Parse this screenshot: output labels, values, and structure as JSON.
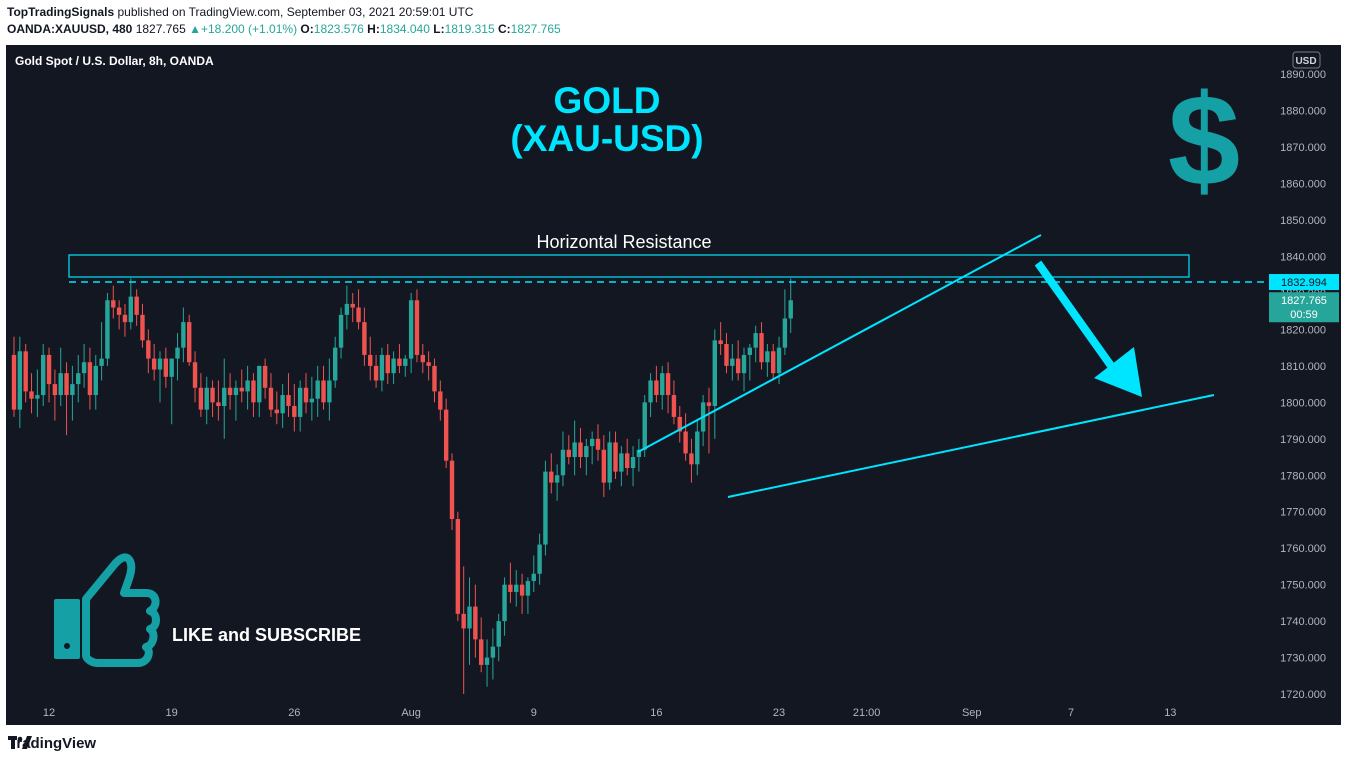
{
  "header": {
    "author": "TopTradingSignals",
    "published": "published on TradingView.com, September 03, 2021 20:59:01 UTC",
    "symbol": "OANDA:XAUUSD, 480",
    "last": "1827.765",
    "change": "+18.200 (+1.01%)",
    "open_label": "O:",
    "open": "1823.576",
    "high_label": "H:",
    "high": "1834.040",
    "low_label": "L:",
    "low": "1819.315",
    "close_label": "C:",
    "close": "1827.765"
  },
  "chart_title": "Gold Spot / U.S. Dollar, 8h, OANDA",
  "currency_badge": "USD",
  "annotations": {
    "title_line1": "GOLD",
    "title_line2": "(XAU-USD)",
    "dollar_sign": "$",
    "resistance_label": "Horizontal Resistance",
    "like_text": "LIKE and SUBSCRIBE"
  },
  "price_tags": {
    "resistance": "1832.994",
    "last_price": "1827.765",
    "countdown": "00:59"
  },
  "footer": {
    "brand": "TradingView"
  },
  "colors": {
    "background": "#131722",
    "up": "#26a69a",
    "down": "#ef5350",
    "annotation": "#00e5ff",
    "icon_teal": "#14a0a5"
  },
  "chart_data": {
    "type": "candlestick",
    "title": "Gold Spot / U.S. Dollar, 8h, OANDA",
    "ylim": [
      1717,
      1898
    ],
    "y_ticks": [
      "1720.000",
      "1730.000",
      "1740.000",
      "1750.000",
      "1760.000",
      "1770.000",
      "1780.000",
      "1790.000",
      "1800.000",
      "1810.000",
      "1820.000",
      "1830.000",
      "1840.000",
      "1850.000",
      "1860.000",
      "1870.000",
      "1880.000",
      "1890.000"
    ],
    "x_ticks": [
      {
        "label": "12",
        "i": 6
      },
      {
        "label": "19",
        "i": 27
      },
      {
        "label": "26",
        "i": 48
      },
      {
        "label": "Aug",
        "i": 68
      },
      {
        "label": "9",
        "i": 89
      },
      {
        "label": "16",
        "i": 110
      },
      {
        "label": "23",
        "i": 131
      },
      {
        "label": "21:00",
        "i": 146
      },
      {
        "label": "Sep",
        "i": 164
      },
      {
        "label": "7",
        "i": 181
      },
      {
        "label": "13",
        "i": 198
      }
    ],
    "resistance_level": 1832.994,
    "candles": [
      [
        1813,
        1818,
        1796,
        1798
      ],
      [
        1798,
        1818,
        1793,
        1814
      ],
      [
        1814,
        1816,
        1800,
        1803
      ],
      [
        1803,
        1808,
        1797,
        1801
      ],
      [
        1801,
        1809,
        1796,
        1802
      ],
      [
        1802,
        1816,
        1799,
        1813
      ],
      [
        1813,
        1815,
        1800,
        1805
      ],
      [
        1805,
        1809,
        1795,
        1802
      ],
      [
        1802,
        1815,
        1799,
        1808
      ],
      [
        1808,
        1811,
        1791,
        1802
      ],
      [
        1802,
        1810,
        1795,
        1805
      ],
      [
        1805,
        1813,
        1800,
        1808
      ],
      [
        1808,
        1816,
        1804,
        1811
      ],
      [
        1811,
        1815,
        1798,
        1802
      ],
      [
        1802,
        1813,
        1798,
        1810
      ],
      [
        1810,
        1822,
        1806,
        1812
      ],
      [
        1812,
        1830,
        1810,
        1828
      ],
      [
        1828,
        1832,
        1823,
        1826
      ],
      [
        1826,
        1828,
        1820,
        1824
      ],
      [
        1824,
        1827,
        1818,
        1822
      ],
      [
        1822,
        1834,
        1820,
        1829
      ],
      [
        1829,
        1831,
        1821,
        1824
      ],
      [
        1824,
        1827,
        1815,
        1817
      ],
      [
        1817,
        1820,
        1808,
        1812
      ],
      [
        1812,
        1816,
        1806,
        1809
      ],
      [
        1809,
        1814,
        1800,
        1812
      ],
      [
        1812,
        1815,
        1804,
        1807
      ],
      [
        1807,
        1812,
        1794,
        1812
      ],
      [
        1812,
        1819,
        1806,
        1815
      ],
      [
        1815,
        1826,
        1811,
        1822
      ],
      [
        1822,
        1824,
        1810,
        1811
      ],
      [
        1811,
        1814,
        1800,
        1804
      ],
      [
        1804,
        1808,
        1796,
        1798
      ],
      [
        1798,
        1807,
        1794,
        1804
      ],
      [
        1804,
        1806,
        1796,
        1800
      ],
      [
        1800,
        1806,
        1795,
        1799
      ],
      [
        1799,
        1812,
        1790,
        1804
      ],
      [
        1804,
        1808,
        1798,
        1802
      ],
      [
        1802,
        1806,
        1795,
        1804
      ],
      [
        1804,
        1809,
        1800,
        1803
      ],
      [
        1803,
        1810,
        1798,
        1806
      ],
      [
        1806,
        1808,
        1796,
        1800
      ],
      [
        1800,
        1810,
        1796,
        1810
      ],
      [
        1810,
        1812,
        1801,
        1804
      ],
      [
        1804,
        1808,
        1796,
        1798
      ],
      [
        1798,
        1803,
        1794,
        1797
      ],
      [
        1797,
        1805,
        1793,
        1802
      ],
      [
        1802,
        1808,
        1796,
        1799
      ],
      [
        1799,
        1805,
        1792,
        1796
      ],
      [
        1796,
        1806,
        1792,
        1804
      ],
      [
        1804,
        1808,
        1797,
        1800
      ],
      [
        1800,
        1807,
        1795,
        1801
      ],
      [
        1801,
        1810,
        1796,
        1806
      ],
      [
        1806,
        1810,
        1798,
        1800
      ],
      [
        1800,
        1812,
        1795,
        1806
      ],
      [
        1806,
        1818,
        1804,
        1815
      ],
      [
        1815,
        1826,
        1812,
        1824
      ],
      [
        1824,
        1832,
        1820,
        1827
      ],
      [
        1827,
        1830,
        1822,
        1826
      ],
      [
        1826,
        1831,
        1820,
        1822
      ],
      [
        1822,
        1826,
        1810,
        1813
      ],
      [
        1813,
        1818,
        1806,
        1810
      ],
      [
        1810,
        1813,
        1804,
        1806
      ],
      [
        1806,
        1815,
        1803,
        1813
      ],
      [
        1813,
        1816,
        1805,
        1808
      ],
      [
        1808,
        1814,
        1805,
        1812
      ],
      [
        1812,
        1816,
        1808,
        1810
      ],
      [
        1810,
        1813,
        1807,
        1812
      ],
      [
        1812,
        1830,
        1808,
        1828
      ],
      [
        1828,
        1831,
        1811,
        1813
      ],
      [
        1813,
        1816,
        1808,
        1811
      ],
      [
        1811,
        1814,
        1806,
        1810
      ],
      [
        1810,
        1812,
        1800,
        1803
      ],
      [
        1803,
        1806,
        1795,
        1798
      ],
      [
        1798,
        1801,
        1782,
        1784
      ],
      [
        1784,
        1786,
        1765,
        1768
      ],
      [
        1768,
        1770,
        1740,
        1742
      ],
      [
        1742,
        1755,
        1720,
        1738
      ],
      [
        1738,
        1752,
        1728,
        1744
      ],
      [
        1744,
        1750,
        1730,
        1735
      ],
      [
        1735,
        1741,
        1726,
        1728
      ],
      [
        1728,
        1735,
        1722,
        1730
      ],
      [
        1730,
        1738,
        1724,
        1733
      ],
      [
        1733,
        1742,
        1729,
        1740
      ],
      [
        1740,
        1752,
        1736,
        1750
      ],
      [
        1750,
        1756,
        1745,
        1748
      ],
      [
        1748,
        1754,
        1744,
        1750
      ],
      [
        1750,
        1753,
        1742,
        1747
      ],
      [
        1747,
        1752,
        1742,
        1751
      ],
      [
        1751,
        1758,
        1748,
        1753
      ],
      [
        1753,
        1764,
        1750,
        1761
      ],
      [
        1761,
        1784,
        1758,
        1781
      ],
      [
        1781,
        1786,
        1775,
        1778
      ],
      [
        1778,
        1783,
        1773,
        1780
      ],
      [
        1780,
        1792,
        1777,
        1787
      ],
      [
        1787,
        1791,
        1783,
        1785
      ],
      [
        1785,
        1795,
        1780,
        1789
      ],
      [
        1789,
        1793,
        1782,
        1785
      ],
      [
        1785,
        1790,
        1780,
        1788
      ],
      [
        1788,
        1792,
        1783,
        1790
      ],
      [
        1790,
        1794,
        1784,
        1787
      ],
      [
        1787,
        1791,
        1774,
        1778
      ],
      [
        1778,
        1792,
        1776,
        1789
      ],
      [
        1789,
        1792,
        1779,
        1781
      ],
      [
        1781,
        1788,
        1777,
        1786
      ],
      [
        1786,
        1790,
        1780,
        1782
      ],
      [
        1782,
        1788,
        1777,
        1785
      ],
      [
        1785,
        1790,
        1781,
        1787
      ],
      [
        1787,
        1802,
        1785,
        1800
      ],
      [
        1800,
        1808,
        1796,
        1806
      ],
      [
        1806,
        1810,
        1800,
        1802
      ],
      [
        1802,
        1810,
        1798,
        1808
      ],
      [
        1808,
        1811,
        1797,
        1802
      ],
      [
        1802,
        1806,
        1794,
        1796
      ],
      [
        1796,
        1799,
        1789,
        1792
      ],
      [
        1792,
        1797,
        1784,
        1786
      ],
      [
        1786,
        1790,
        1778,
        1783
      ],
      [
        1783,
        1795,
        1780,
        1792
      ],
      [
        1792,
        1802,
        1788,
        1800
      ],
      [
        1800,
        1804,
        1786,
        1799
      ],
      [
        1799,
        1820,
        1790,
        1817
      ],
      [
        1817,
        1822,
        1813,
        1816
      ],
      [
        1816,
        1819,
        1808,
        1810
      ],
      [
        1810,
        1816,
        1806,
        1812
      ],
      [
        1812,
        1817,
        1806,
        1808
      ],
      [
        1808,
        1815,
        1803,
        1813
      ],
      [
        1813,
        1816,
        1806,
        1815
      ],
      [
        1815,
        1821,
        1811,
        1819
      ],
      [
        1819,
        1822,
        1809,
        1811
      ],
      [
        1811,
        1816,
        1807,
        1814
      ],
      [
        1814,
        1816,
        1806,
        1808
      ],
      [
        1808,
        1818,
        1805,
        1815
      ],
      [
        1815,
        1831,
        1813,
        1823
      ],
      [
        1823,
        1834,
        1819,
        1828
      ]
    ]
  }
}
